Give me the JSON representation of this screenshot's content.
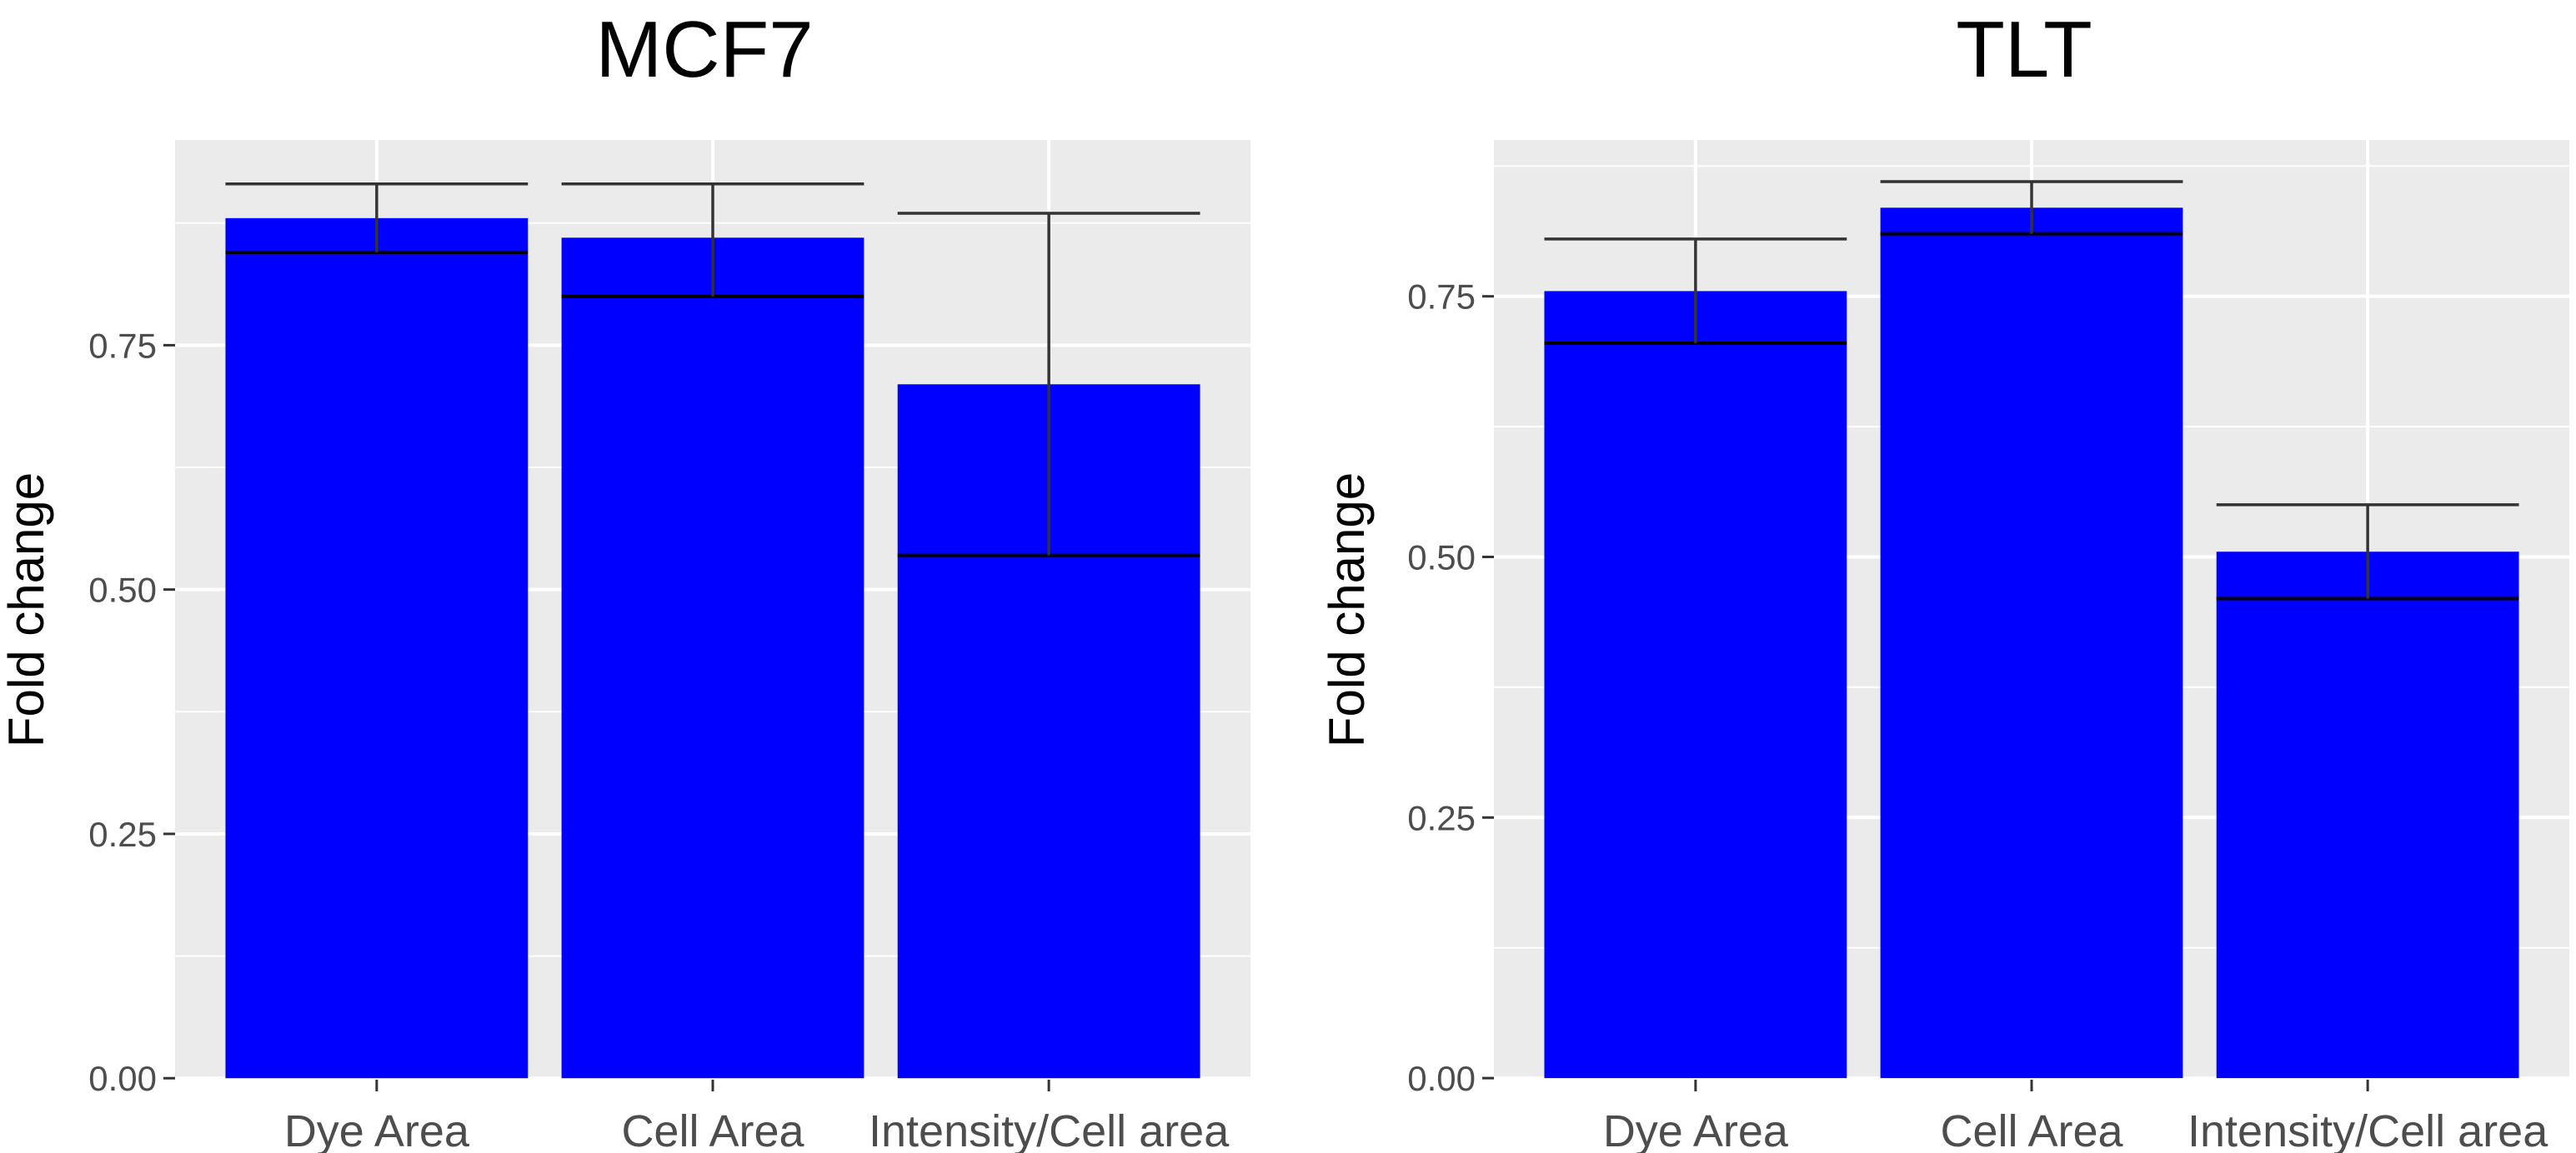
{
  "chart_data": [
    {
      "type": "bar",
      "title": "MCF7",
      "xlabel": "",
      "ylabel": "Fold change",
      "categories": [
        "Dye Area",
        "Cell Area",
        "Intensity/Cell area"
      ],
      "values": [
        0.88,
        0.86,
        0.71
      ],
      "error_low": [
        0.845,
        0.8,
        0.535
      ],
      "error_high": [
        0.915,
        0.915,
        0.885
      ],
      "yticks": [
        0.0,
        0.25,
        0.5,
        0.75
      ],
      "ytick_labels": [
        "0.00",
        "0.25",
        "0.50",
        "0.75"
      ],
      "ylim": [
        -0.0015,
        0.96
      ],
      "bar_color": "#0000ff",
      "panel_color": "#ebebeb",
      "grid": true
    },
    {
      "type": "bar",
      "title": "TLT",
      "xlabel": "",
      "ylabel": "Fold change",
      "categories": [
        "Dye Area",
        "Cell Area",
        "Intensity/Cell area"
      ],
      "values": [
        0.755,
        0.835,
        0.505
      ],
      "error_low": [
        0.705,
        0.81,
        0.46
      ],
      "error_high": [
        0.805,
        0.86,
        0.55
      ],
      "yticks": [
        0.0,
        0.25,
        0.5,
        0.75
      ],
      "ytick_labels": [
        "0.00",
        "0.25",
        "0.50",
        "0.75"
      ],
      "ylim": [
        -0.0015,
        0.9
      ],
      "bar_color": "#0000ff",
      "panel_color": "#ebebeb",
      "grid": true
    }
  ]
}
